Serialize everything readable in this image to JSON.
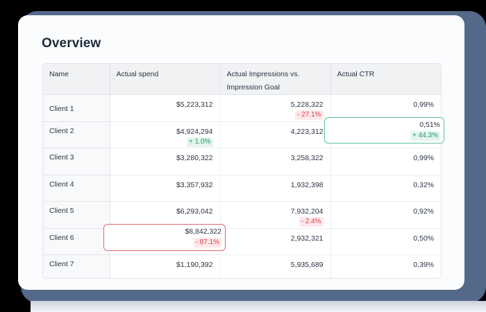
{
  "page": {
    "title": "Overview"
  },
  "table": {
    "columns": [
      "Name",
      "Actual spend",
      "Actual Impressions vs.\nImpression Goal",
      "Actual CTR"
    ],
    "column_labels": {
      "name": "Name",
      "spend": "Actual spend",
      "impressions_line1": "Actual Impressions vs.",
      "impressions_line2": "Impression Goal",
      "ctr": "Actual CTR"
    },
    "rows": [
      {
        "name": "Client 1",
        "spend": "$5,223,312",
        "spend_delta": null,
        "impressions": "5,228,322",
        "impressions_delta": "- 27.1%",
        "ctr": "0,99%",
        "ctr_delta": null
      },
      {
        "name": "Client 2",
        "spend": "$4,924,294",
        "spend_delta": "+ 1.0%",
        "impressions": "4,223,312",
        "impressions_delta": null,
        "ctr": "0,51%",
        "ctr_delta": "+ 44.3%"
      },
      {
        "name": "Client 3",
        "spend": "$3,280,322",
        "spend_delta": null,
        "impressions": "3,258,322",
        "impressions_delta": null,
        "ctr": "0,99%",
        "ctr_delta": null
      },
      {
        "name": "Client 4",
        "spend": "$3,357,932",
        "spend_delta": null,
        "impressions": "1,932,398",
        "impressions_delta": null,
        "ctr": "0,32%",
        "ctr_delta": null
      },
      {
        "name": "Client 5",
        "spend": "$6,293,042",
        "spend_delta": null,
        "impressions": "7,932,204",
        "impressions_delta": "- 2.4%",
        "ctr": "0,92%",
        "ctr_delta": null
      },
      {
        "name": "Client 6",
        "spend": "$8,842,322",
        "spend_delta": "- 87.1%",
        "impressions": "2,932,321",
        "impressions_delta": null,
        "ctr": "0,50%",
        "ctr_delta": null
      },
      {
        "name": "Client 7",
        "spend": "$1,190,392",
        "spend_delta": null,
        "impressions": "5,935,689",
        "impressions_delta": null,
        "ctr": "0,39%",
        "ctr_delta": null
      }
    ]
  },
  "highlights": {
    "positive": {
      "row": "Client 2",
      "column": "Actual CTR",
      "value": "0,51%",
      "delta": "+ 44.3%"
    },
    "negative": {
      "row": "Client 6",
      "column": "Actual spend",
      "value": "$8,842,322",
      "delta": "- 87.1%"
    }
  },
  "colors": {
    "title": "#1f2a3c",
    "header_bg": "#f1f2f4",
    "positive_text": "#1e9a68",
    "positive_bg": "#e5f5ee",
    "positive_border": "#5cc29a",
    "negative_text": "#e23a4c",
    "negative_bg": "#fde8ea",
    "negative_border": "#e0656f",
    "backdrop_shadow": "#54698a"
  }
}
